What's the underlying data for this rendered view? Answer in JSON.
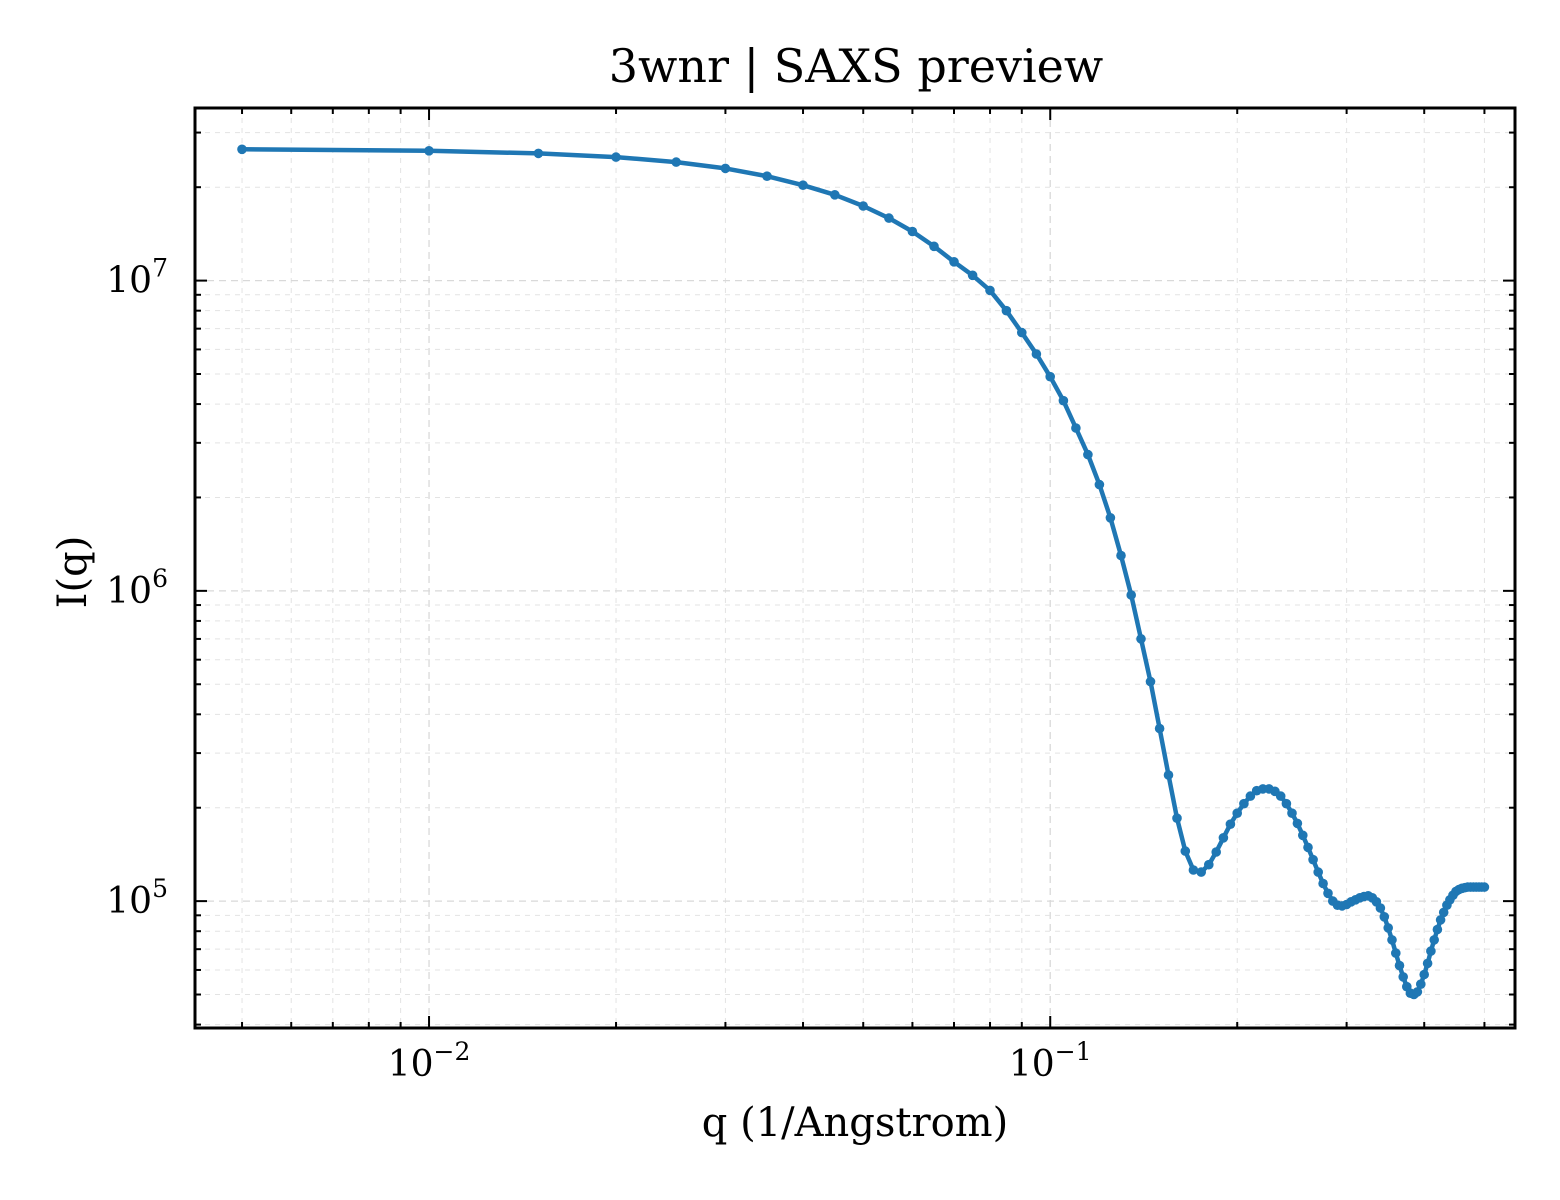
{
  "chart_data": {
    "type": "line",
    "title": "3wnr | SAXS preview",
    "xlabel": "q (1/Angstrom)",
    "ylabel": "I(q)",
    "x_scale": "log",
    "y_scale": "log",
    "xlim": [
      0.0042,
      0.56
    ],
    "ylim": [
      39000,
      36000000
    ],
    "x_ticks": [
      {
        "base": "10",
        "exp": "−2",
        "value": 0.01
      },
      {
        "base": "10",
        "exp": "−1",
        "value": 0.1
      }
    ],
    "y_ticks": [
      {
        "base": "10",
        "exp": "5",
        "value": 100000
      },
      {
        "base": "10",
        "exp": "6",
        "value": 1000000
      },
      {
        "base": "10",
        "exp": "7",
        "value": 10000000
      }
    ],
    "grid": true,
    "line_color": "#1f77b4",
    "markers": true,
    "series": [
      {
        "x": [
          0.005,
          0.01,
          0.015,
          0.02,
          0.025,
          0.03,
          0.035,
          0.04,
          0.045,
          0.05,
          0.055,
          0.06,
          0.065,
          0.07,
          0.075,
          0.08,
          0.085,
          0.09,
          0.095,
          0.1,
          0.105,
          0.11,
          0.115,
          0.12,
          0.125,
          0.13,
          0.135,
          0.14,
          0.145,
          0.15,
          0.155,
          0.16,
          0.165,
          0.17,
          0.175,
          0.18,
          0.185,
          0.19,
          0.195,
          0.2,
          0.205,
          0.21,
          0.215,
          0.22,
          0.225,
          0.23,
          0.235,
          0.24,
          0.245,
          0.25,
          0.255,
          0.26,
          0.265,
          0.27,
          0.275,
          0.28,
          0.285,
          0.29,
          0.295,
          0.3,
          0.305,
          0.31,
          0.315,
          0.32,
          0.325,
          0.33,
          0.335,
          0.34,
          0.345,
          0.35,
          0.355,
          0.36,
          0.365,
          0.37,
          0.375,
          0.38,
          0.385,
          0.39,
          0.395,
          0.4,
          0.405,
          0.41,
          0.415,
          0.42,
          0.425,
          0.43,
          0.435,
          0.44,
          0.445,
          0.45,
          0.455,
          0.46,
          0.465,
          0.47,
          0.475,
          0.48,
          0.485,
          0.49,
          0.495,
          0.5
        ],
        "y": [
          26500000,
          26200000,
          25700000,
          25000000,
          24100000,
          23000000,
          21700000,
          20300000,
          18900000,
          17400000,
          15900000,
          14400000,
          12900000,
          11500000,
          10400000,
          9300000,
          8000000,
          6800000,
          5800000,
          4900000,
          4100000,
          3350000,
          2750000,
          2200000,
          1720000,
          1300000,
          970000,
          700000,
          510000,
          360000,
          255000,
          185000,
          145000,
          126000,
          124000,
          131000,
          144000,
          160000,
          177000,
          192000,
          206000,
          218000,
          227000,
          230000,
          230000,
          226000,
          218000,
          206000,
          192000,
          178000,
          163000,
          149000,
          136000,
          124000,
          114000,
          106000,
          100000,
          97000,
          96500,
          97500,
          99500,
          101000,
          102500,
          103500,
          104000,
          102500,
          99500,
          95000,
          89000,
          82000,
          75000,
          68000,
          62000,
          57000,
          53000,
          50500,
          50000,
          51000,
          54000,
          58000,
          63000,
          69000,
          75000,
          81000,
          87000,
          92000,
          97000,
          101000,
          104500,
          107500,
          109000,
          110000,
          110500,
          111000,
          111000,
          111000,
          111000,
          111000,
          111000,
          111000
        ]
      }
    ]
  }
}
